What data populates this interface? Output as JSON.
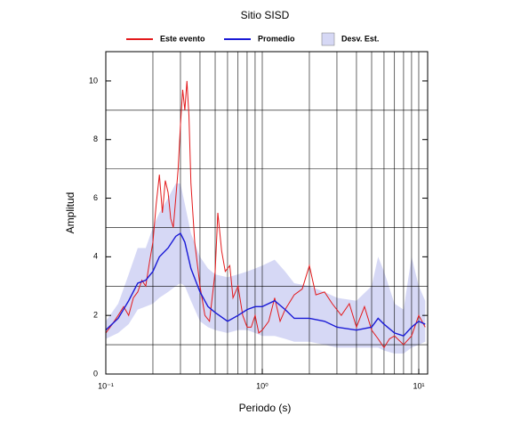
{
  "chart_data": {
    "type": "line",
    "title": "Sitio SISD",
    "x_label": "Periodo (s)",
    "y_label": "Amplitud",
    "log_x": true,
    "xlim": [
      0.1,
      11.4
    ],
    "ylim": [
      0,
      11
    ],
    "xticks": [
      {
        "value": 0.1,
        "label": "10⁻¹"
      },
      {
        "value": 1,
        "label": "10⁰"
      },
      {
        "value": 10,
        "label": "10¹"
      }
    ],
    "yticks": [
      0,
      2,
      4,
      6,
      8,
      10
    ],
    "xgrid": [
      0.2,
      0.3,
      0.4,
      0.5,
      0.6,
      0.7,
      0.8,
      0.9,
      1,
      2,
      3,
      4,
      5,
      6,
      7,
      8,
      9,
      10
    ],
    "ygrid": [
      1,
      3,
      5,
      7,
      9
    ],
    "legend": "top",
    "series": [
      {
        "name": "Este evento",
        "color": "#e31a1c",
        "x": [
          0.1,
          0.11,
          0.12,
          0.13,
          0.14,
          0.15,
          0.16,
          0.17,
          0.18,
          0.19,
          0.2,
          0.21,
          0.22,
          0.23,
          0.24,
          0.25,
          0.26,
          0.27,
          0.28,
          0.29,
          0.3,
          0.31,
          0.32,
          0.33,
          0.34,
          0.35,
          0.37,
          0.4,
          0.43,
          0.46,
          0.5,
          0.52,
          0.55,
          0.58,
          0.62,
          0.65,
          0.7,
          0.75,
          0.8,
          0.85,
          0.9,
          0.95,
          1.0,
          1.1,
          1.2,
          1.3,
          1.4,
          1.6,
          1.8,
          2.0,
          2.2,
          2.5,
          2.8,
          3.2,
          3.6,
          4,
          4.5,
          5,
          5.5,
          6,
          6.5,
          7,
          8,
          9,
          10,
          11
        ],
        "values": [
          1.4,
          1.7,
          2.0,
          2.3,
          2.0,
          2.6,
          2.8,
          3.2,
          3.0,
          3.8,
          4.5,
          5.8,
          6.8,
          5.5,
          6.6,
          6.2,
          5.3,
          5.0,
          6.0,
          7.0,
          8.5,
          9.7,
          9.0,
          10.0,
          8.8,
          6.5,
          4.5,
          3.0,
          2.0,
          1.8,
          3.5,
          5.5,
          4.2,
          3.5,
          3.7,
          2.6,
          3.0,
          2.0,
          1.6,
          1.6,
          2.0,
          1.4,
          1.5,
          1.8,
          2.6,
          1.8,
          2.2,
          2.7,
          2.9,
          3.7,
          2.7,
          2.8,
          2.4,
          2.0,
          2.4,
          1.6,
          2.3,
          1.5,
          1.2,
          0.9,
          1.2,
          1.3,
          1.0,
          1.3,
          2.0,
          1.6
        ]
      },
      {
        "name": "Promedio",
        "color": "#1a1ad6",
        "x": [
          0.1,
          0.12,
          0.14,
          0.16,
          0.18,
          0.2,
          0.22,
          0.25,
          0.28,
          0.3,
          0.32,
          0.35,
          0.4,
          0.45,
          0.5,
          0.6,
          0.7,
          0.8,
          0.9,
          1.0,
          1.2,
          1.4,
          1.6,
          2,
          2.5,
          3,
          4,
          5,
          5.5,
          6,
          7,
          8,
          9,
          10,
          11
        ],
        "values": [
          1.5,
          1.9,
          2.5,
          3.1,
          3.2,
          3.5,
          4.0,
          4.3,
          4.7,
          4.8,
          4.5,
          3.6,
          2.8,
          2.3,
          2.1,
          1.8,
          2.0,
          2.2,
          2.3,
          2.3,
          2.5,
          2.2,
          1.9,
          1.9,
          1.8,
          1.6,
          1.5,
          1.6,
          1.9,
          1.7,
          1.4,
          1.3,
          1.6,
          1.8,
          1.7
        ]
      }
    ],
    "band": {
      "name": "Desv. Est.",
      "color": "#d6d8f5",
      "x": [
        0.1,
        0.12,
        0.14,
        0.16,
        0.18,
        0.2,
        0.22,
        0.25,
        0.28,
        0.3,
        0.32,
        0.35,
        0.4,
        0.45,
        0.5,
        0.6,
        0.7,
        0.8,
        0.9,
        1.0,
        1.2,
        1.4,
        1.6,
        2,
        2.5,
        3,
        4,
        5,
        5.5,
        6,
        7,
        8,
        9,
        10,
        11
      ],
      "upper": [
        1.8,
        2.4,
        3.4,
        4.3,
        4.3,
        5.0,
        5.5,
        6.0,
        6.5,
        6.5,
        5.8,
        4.8,
        4.0,
        3.6,
        3.4,
        3.3,
        3.4,
        3.5,
        3.6,
        3.7,
        3.9,
        3.5,
        3.1,
        3.0,
        2.8,
        2.6,
        2.5,
        3.0,
        4.0,
        3.5,
        2.4,
        2.2,
        4.0,
        3.0,
        2.5
      ],
      "lower": [
        1.2,
        1.4,
        1.7,
        2.2,
        2.3,
        2.4,
        2.6,
        2.8,
        3.0,
        3.1,
        3.0,
        2.5,
        1.8,
        1.6,
        1.5,
        1.4,
        1.5,
        1.5,
        1.4,
        1.3,
        1.3,
        1.2,
        1.1,
        1.1,
        1.0,
        0.9,
        0.9,
        0.9,
        0.9,
        0.8,
        0.7,
        0.7,
        0.9,
        1.0,
        1.1
      ]
    }
  }
}
